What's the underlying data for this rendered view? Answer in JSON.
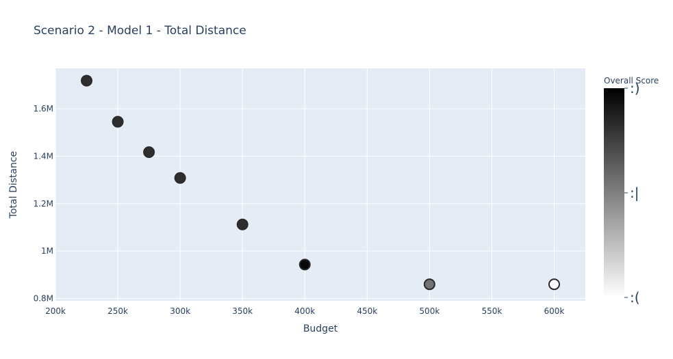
{
  "chart_data": {
    "type": "scatter",
    "title": "Scenario 2 - Model 1 - Total Distance",
    "xlabel": "Budget",
    "ylabel": "Total Distance",
    "xlim": [
      200000,
      625000
    ],
    "ylim": [
      790000,
      1770000
    ],
    "xticks": [
      {
        "value": 200000,
        "label": "200k"
      },
      {
        "value": 250000,
        "label": "250k"
      },
      {
        "value": 300000,
        "label": "300k"
      },
      {
        "value": 350000,
        "label": "350k"
      },
      {
        "value": 400000,
        "label": "400k"
      },
      {
        "value": 450000,
        "label": "450k"
      },
      {
        "value": 500000,
        "label": "500k"
      },
      {
        "value": 550000,
        "label": "550k"
      },
      {
        "value": 600000,
        "label": "600k"
      }
    ],
    "yticks": [
      {
        "value": 800000,
        "label": "0.8M"
      },
      {
        "value": 1000000,
        "label": "1M"
      },
      {
        "value": 1200000,
        "label": "1.2M"
      },
      {
        "value": 1400000,
        "label": "1.4M"
      },
      {
        "value": 1600000,
        "label": "1.6M"
      }
    ],
    "points": [
      {
        "x": 225000,
        "y": 1718000,
        "score": 0.82
      },
      {
        "x": 250000,
        "y": 1545000,
        "score": 0.82
      },
      {
        "x": 275000,
        "y": 1417000,
        "score": 0.82
      },
      {
        "x": 300000,
        "y": 1308000,
        "score": 0.82
      },
      {
        "x": 350000,
        "y": 1112000,
        "score": 0.82
      },
      {
        "x": 400000,
        "y": 943000,
        "score": 0.97
      },
      {
        "x": 500000,
        "y": 860000,
        "score": 0.55
      },
      {
        "x": 600000,
        "y": 860000,
        "score": 0.0
      }
    ],
    "colorbar": {
      "title": "Overall Score",
      "range": [
        0,
        1
      ],
      "ticks": [
        {
          "value": 1.0,
          "label": ":)"
        },
        {
          "value": 0.5,
          "label": ":|"
        },
        {
          "value": 0.0,
          "label": ":("
        }
      ],
      "colors": [
        "#ffffff",
        "#000000"
      ]
    },
    "grid": true,
    "plot_bg": "#e5ecf6",
    "marker_outline": "#2a2a2a"
  }
}
